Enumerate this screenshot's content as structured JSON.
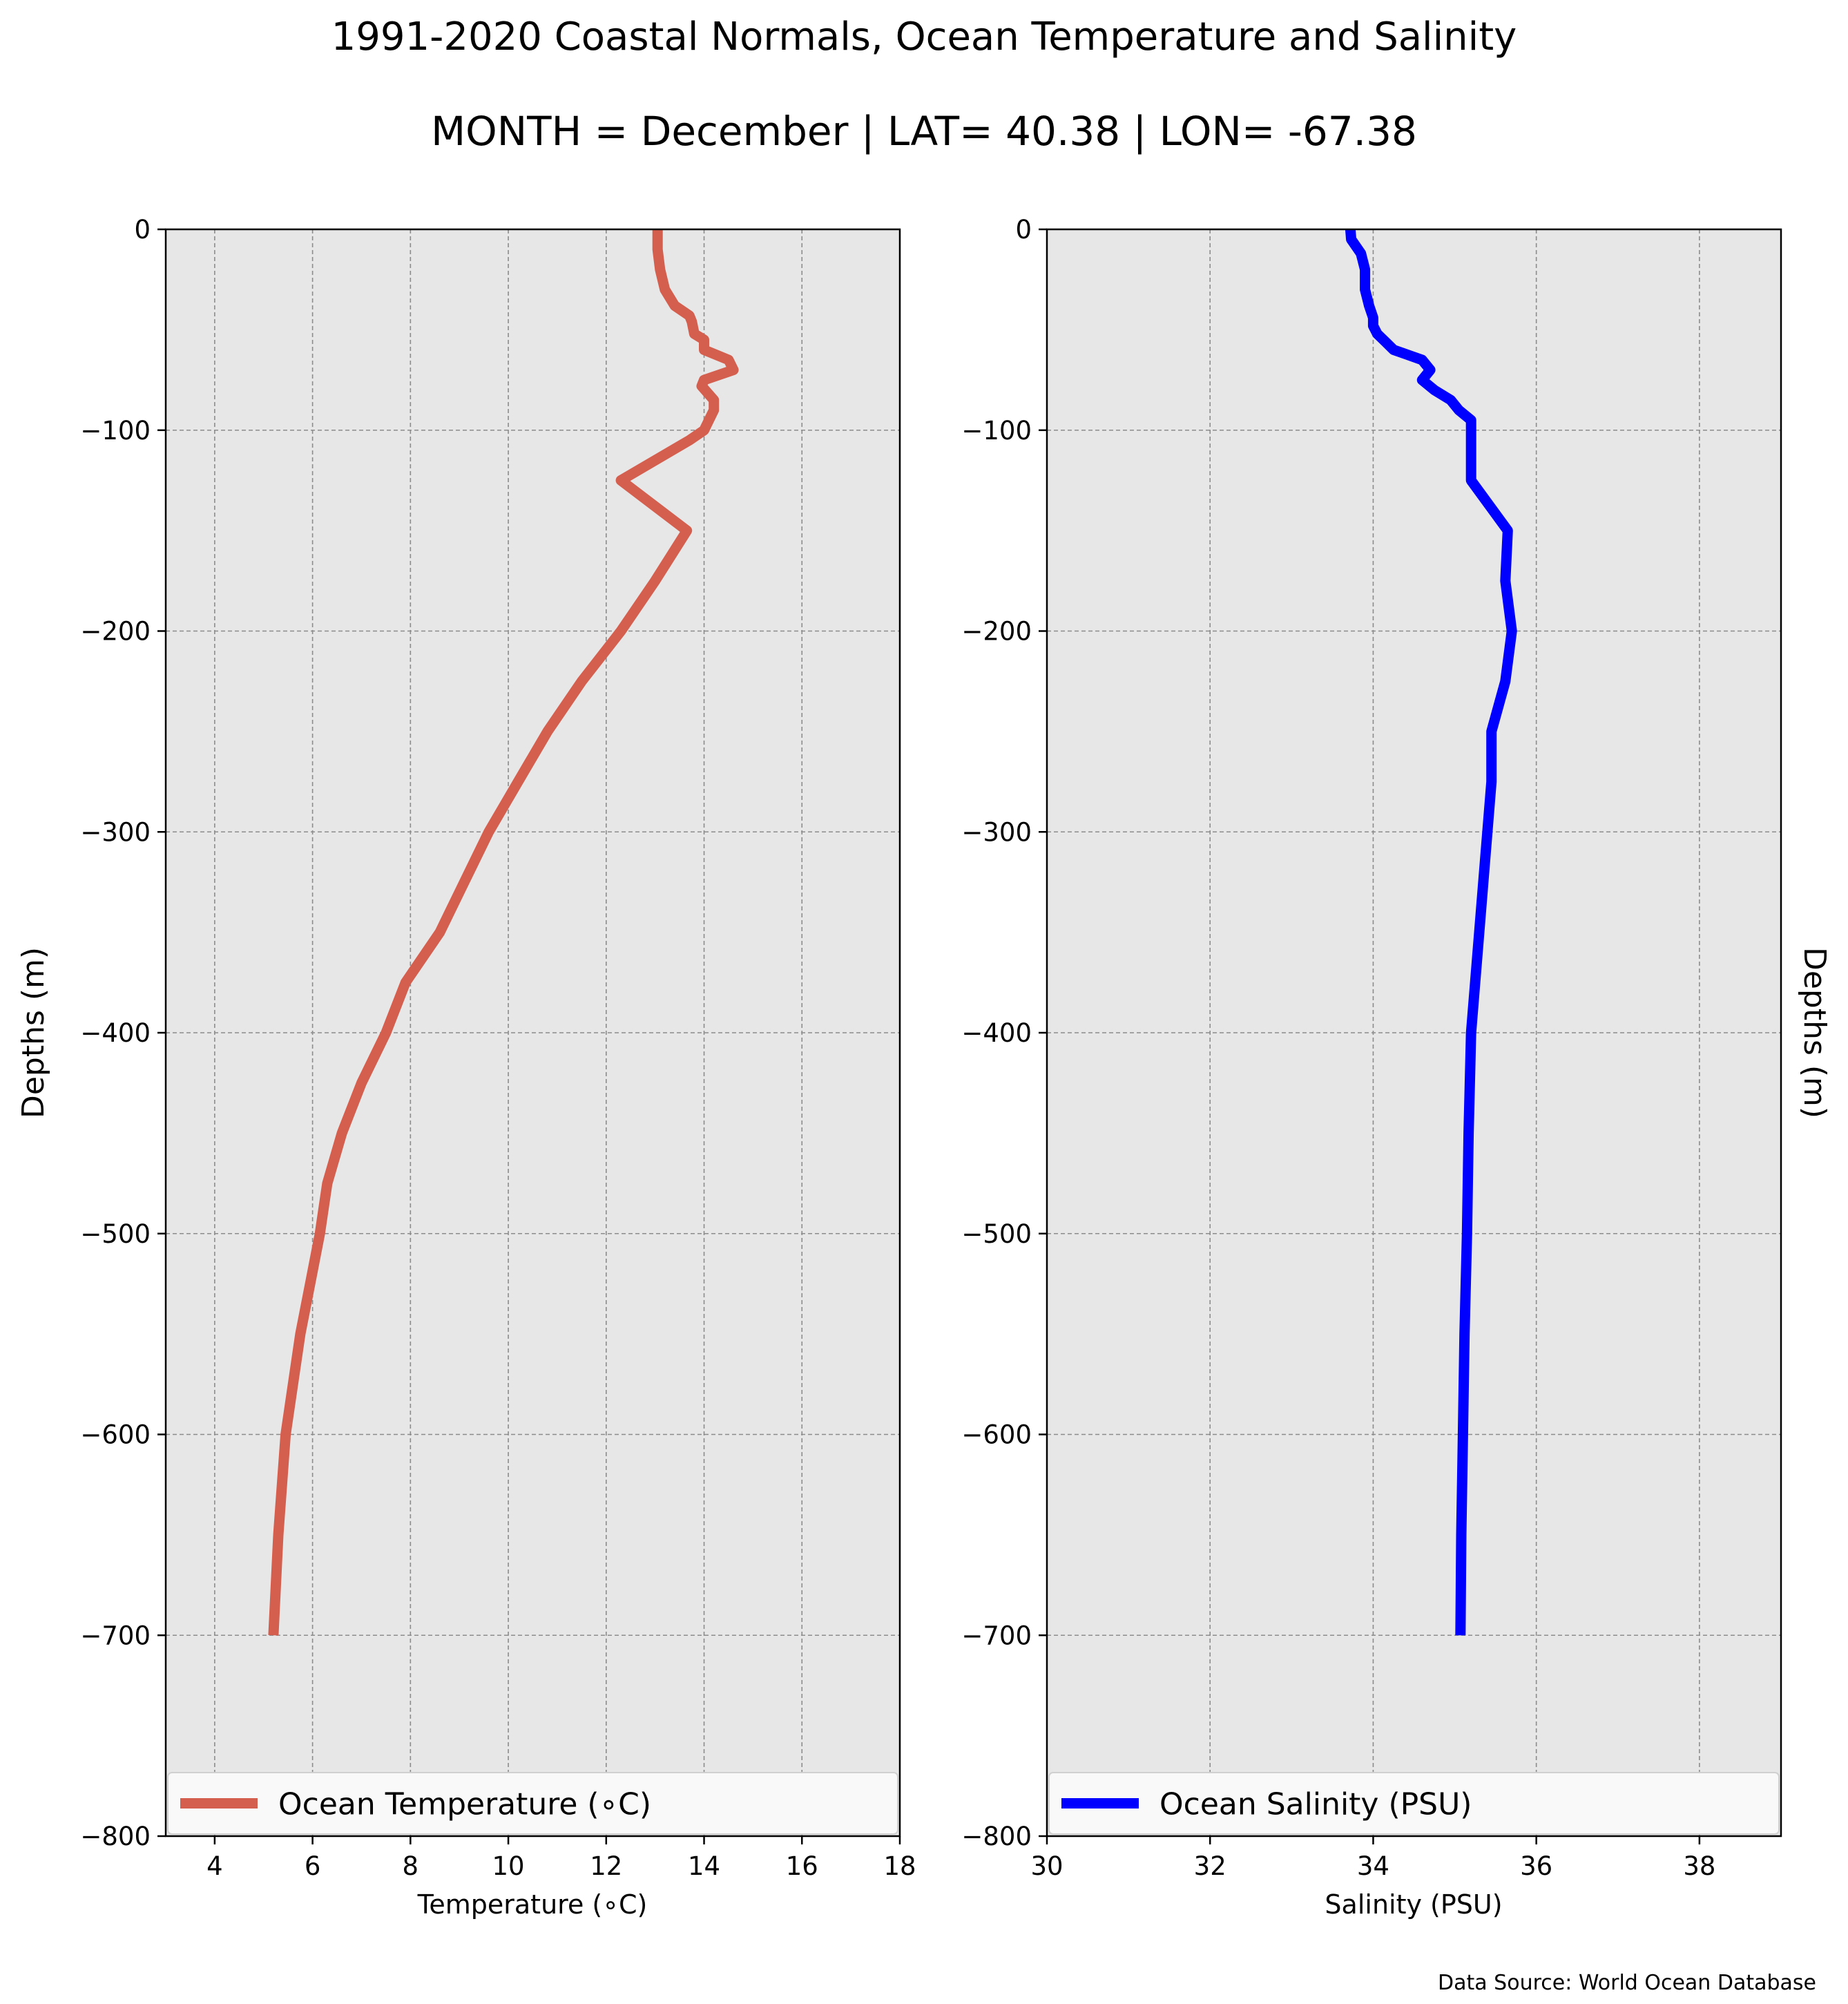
{
  "figure": {
    "title": "1991-2020 Coastal Normals, Ocean Temperature and Salinity",
    "subtitle": "MONTH = December | LAT= 40.38 | LON= -67.38",
    "source_note": "Data Source: World Ocean Database",
    "background": "#ffffff"
  },
  "chart_data": [
    {
      "type": "line",
      "xlabel": "Temperature ($^\\circ$C)",
      "xlabel_display": "Temperature (∘C)",
      "ylabel": "Depths (m)",
      "xlim": [
        3,
        18
      ],
      "ylim": [
        -800,
        0
      ],
      "xticks": [
        4,
        6,
        8,
        10,
        12,
        14,
        16,
        18
      ],
      "yticks": [
        0,
        -100,
        -200,
        -300,
        -400,
        -500,
        -600,
        -700,
        -800
      ],
      "grid": true,
      "legend_position": "lower-left",
      "plot_background": "#e7e7e7",
      "series": [
        {
          "name": "Ocean Temperature (∘C)",
          "color": "#d45f4f",
          "x": [
            13.05,
            13.05,
            13.1,
            13.2,
            13.4,
            13.7,
            13.75,
            13.8,
            14.0,
            14.0,
            14.5,
            14.6,
            14.0,
            13.95,
            14.2,
            14.2,
            14.1,
            14.0,
            13.7,
            12.3,
            13.65,
            13.0,
            12.3,
            11.5,
            10.8,
            10.2,
            9.6,
            9.1,
            8.6,
            7.9,
            7.5,
            7.0,
            6.6,
            6.3,
            6.15,
            5.95,
            5.75,
            5.45,
            5.3,
            5.2
          ],
          "y": [
            0,
            -10,
            -20,
            -30,
            -38,
            -43,
            -46,
            -52,
            -55,
            -60,
            -65,
            -70,
            -75,
            -78,
            -85,
            -90,
            -95,
            -100,
            -105,
            -125,
            -150,
            -175,
            -200,
            -225,
            -250,
            -275,
            -300,
            -325,
            -350,
            -375,
            -400,
            -425,
            -450,
            -475,
            -500,
            -525,
            -550,
            -600,
            -650,
            -700
          ]
        }
      ]
    },
    {
      "type": "line",
      "xlabel": "Salinity (PSU)",
      "ylabel": "Depths (m)",
      "xlim": [
        30,
        39
      ],
      "ylim": [
        -800,
        0
      ],
      "xticks": [
        30,
        32,
        34,
        36,
        38
      ],
      "yticks": [
        0,
        -100,
        -200,
        -300,
        -400,
        -500,
        -600,
        -700,
        -800
      ],
      "grid": true,
      "legend_position": "lower-left",
      "plot_background": "#e7e7e7",
      "series": [
        {
          "name": "Ocean Salinity (PSU)",
          "color": "#0000ff",
          "x": [
            33.72,
            33.73,
            33.85,
            33.9,
            33.9,
            33.95,
            34.0,
            34.0,
            34.05,
            34.15,
            34.25,
            34.6,
            34.7,
            34.6,
            34.75,
            34.95,
            35.05,
            35.2,
            35.2,
            35.2,
            35.65,
            35.62,
            35.7,
            35.62,
            35.45,
            35.45,
            35.4,
            35.35,
            35.3,
            35.25,
            35.2,
            35.17,
            35.15,
            35.12,
            35.1,
            35.08,
            35.07
          ],
          "y": [
            0,
            -5,
            -12,
            -20,
            -30,
            -38,
            -44,
            -48,
            -52,
            -56,
            -60,
            -65,
            -70,
            -75,
            -80,
            -85,
            -90,
            -95,
            -100,
            -125,
            -150,
            -175,
            -200,
            -225,
            -250,
            -275,
            -300,
            -325,
            -350,
            -375,
            -400,
            -450,
            -500,
            -550,
            -600,
            -650,
            -700
          ]
        }
      ]
    }
  ]
}
